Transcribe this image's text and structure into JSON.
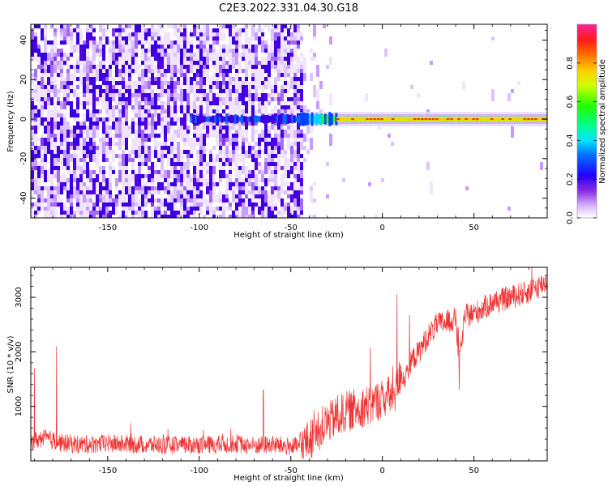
{
  "figure_title": "C2E3.2022.331.04.30.G18",
  "colors": {
    "snr_line": "#ee3333",
    "spectrogram_noise": "#6a1be8",
    "signal_peak": "#ff2020"
  },
  "chart_data": [
    {
      "type": "heatmap",
      "title": "C2E3.2022.331.04.30.G18",
      "xlabel": "Height of straight line (km)",
      "ylabel": "Frequency (Hz)",
      "xlim": [
        -192,
        90
      ],
      "ylim": [
        -50,
        48
      ],
      "xticks": [
        -150,
        -100,
        -50,
        0,
        50
      ],
      "yticks": [
        -40,
        -20,
        0,
        20,
        40
      ],
      "colorscale": "rainbow",
      "description_of_values": "noisy broadband below -45 km; narrow carrier near 0 Hz strengthening above -40 km, peaking near 0-60 km",
      "carrier_frequency_hz": 0,
      "noise_edge_km": -45,
      "colorbar": {
        "label": "Normalized spectral amplitude",
        "range": [
          0.0,
          1.0
        ],
        "ticks": [
          "0.0",
          "0.2",
          "0.4",
          "0.6",
          "0.8"
        ]
      }
    },
    {
      "type": "line",
      "xlabel": "Height of straight line (km)",
      "ylabel": "SNR (10 * v/v)",
      "xlim": [
        -192,
        90
      ],
      "ylim": [
        0,
        3550
      ],
      "xticks": [
        -150,
        -100,
        -50,
        0,
        50
      ],
      "yticks": [
        1000,
        2000,
        3000
      ],
      "x": [
        -192,
        -185,
        -175,
        -165,
        -150,
        -140,
        -130,
        -120,
        -110,
        -100,
        -90,
        -80,
        -70,
        -60,
        -50,
        -45,
        -40,
        -35,
        -30,
        -25,
        -20,
        -15,
        -10,
        -5,
        0,
        5,
        8,
        10,
        12,
        15,
        20,
        25,
        30,
        35,
        40,
        42,
        45,
        50,
        55,
        60,
        65,
        70,
        75,
        80,
        85,
        90
      ],
      "y": [
        350,
        420,
        330,
        300,
        320,
        310,
        300,
        290,
        280,
        300,
        290,
        320,
        280,
        300,
        260,
        270,
        380,
        520,
        700,
        800,
        900,
        950,
        1000,
        1050,
        1150,
        1200,
        1300,
        1600,
        1500,
        1800,
        2000,
        2300,
        2500,
        2550,
        2600,
        1800,
        2650,
        2700,
        2800,
        2900,
        2950,
        3000,
        3050,
        3100,
        3200,
        3300
      ],
      "annotations_spikes": [
        {
          "x": -190,
          "y": 1700
        },
        {
          "x": -178,
          "y": 2100
        },
        {
          "x": -65,
          "y": 1300
        },
        {
          "x": 8,
          "y": 3050
        },
        {
          "x": 42,
          "y": 1300
        }
      ]
    }
  ]
}
